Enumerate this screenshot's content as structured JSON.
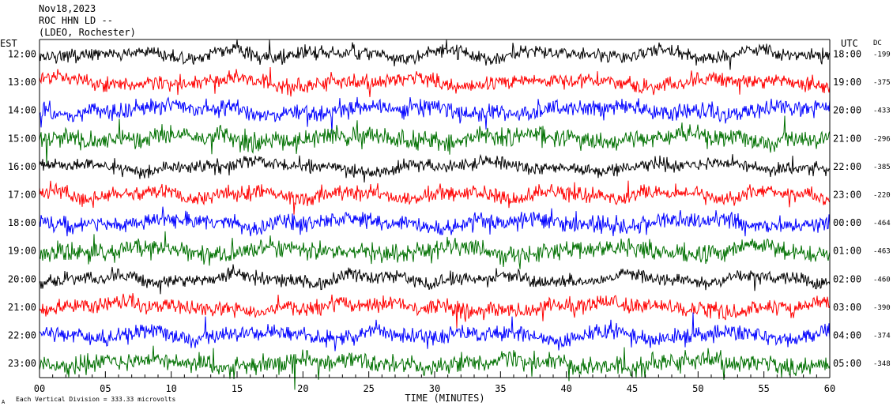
{
  "header": {
    "date": "Nov18,2023",
    "station": "ROC HHN LD --",
    "location": "(LDEO, Rochester)"
  },
  "chart_data": {
    "type": "line",
    "left_axis_label": "EST",
    "right_axis_label": "UTC",
    "dc_label": "DC",
    "xlabel": "TIME (MINUTES)",
    "xlim": [
      0,
      60
    ],
    "x_ticks": [
      "00",
      "05",
      "10",
      "15",
      "20",
      "25",
      "30",
      "35",
      "40",
      "45",
      "50",
      "55",
      "60"
    ],
    "footer": "Each Vertical Division =  333.33 microvolts",
    "footer_mark": "A",
    "colors": [
      "#000000",
      "#ff0000",
      "#0000ff",
      "#007000"
    ],
    "traces": [
      {
        "est": "12:00",
        "utc": "18:00",
        "dc": "-199"
      },
      {
        "est": "13:00",
        "utc": "19:00",
        "dc": "-375"
      },
      {
        "est": "14:00",
        "utc": "20:00",
        "dc": "-433"
      },
      {
        "est": "15:00",
        "utc": "21:00",
        "dc": "-296"
      },
      {
        "est": "16:00",
        "utc": "22:00",
        "dc": "-385"
      },
      {
        "est": "17:00",
        "utc": "23:00",
        "dc": "-220"
      },
      {
        "est": "18:00",
        "utc": "00:00",
        "dc": "-464"
      },
      {
        "est": "19:00",
        "utc": "01:00",
        "dc": "-463"
      },
      {
        "est": "20:00",
        "utc": "02:00",
        "dc": "-460"
      },
      {
        "est": "21:00",
        "utc": "03:00",
        "dc": "-390"
      },
      {
        "est": "22:00",
        "utc": "04:00",
        "dc": "-374"
      },
      {
        "est": "23:00",
        "utc": "05:00",
        "dc": "-348"
      }
    ]
  }
}
